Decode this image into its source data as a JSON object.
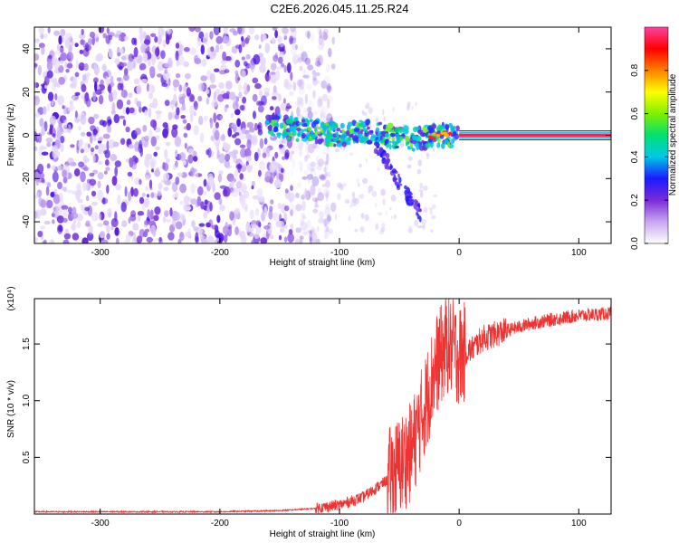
{
  "title": "C2E6.2026.045.11.25.R24",
  "chart_data": [
    {
      "type": "heatmap",
      "xlabel": "Height of straight line (km)",
      "ylabel": "Frequency (Hz)",
      "xlim": [
        -355,
        127
      ],
      "ylim": [
        -50,
        50
      ],
      "xticks": [
        -300,
        -200,
        -100,
        0,
        100
      ],
      "yticks": [
        -40,
        -20,
        0,
        20,
        40
      ],
      "colorbar": {
        "label": "Normalized spectral amplitude",
        "range": [
          0,
          1
        ],
        "ticks": [
          "0.0",
          "0.2",
          "0.4",
          "0.6",
          "0.8"
        ],
        "colors": [
          "#ffffff",
          "#c8a6f0",
          "#7b2bd8",
          "#1a1aff",
          "#00c8e6",
          "#00e070",
          "#80f000",
          "#ffff00",
          "#ff8000",
          "#ff0000",
          "#ff40a0"
        ]
      },
      "features": {
        "noise_region_x": [
          -355,
          -120
        ],
        "signal_track": [
          {
            "x": -160,
            "y": 5
          },
          {
            "x": -140,
            "y": 3
          },
          {
            "x": -120,
            "y": 2
          },
          {
            "x": -100,
            "y": 0
          },
          {
            "x": -80,
            "y": 2
          },
          {
            "x": -60,
            "y": 0
          },
          {
            "x": -40,
            "y": -2
          },
          {
            "x": -20,
            "y": 0
          },
          {
            "x": 0,
            "y": 0
          },
          {
            "x": 127,
            "y": 0
          }
        ],
        "branch_track": [
          {
            "x": -70,
            "y": -5
          },
          {
            "x": -60,
            "y": -12
          },
          {
            "x": -50,
            "y": -22
          },
          {
            "x": -40,
            "y": -30
          },
          {
            "x": -30,
            "y": -38
          }
        ]
      }
    },
    {
      "type": "line",
      "xlabel": "Height of straight line (km)",
      "ylabel": "SNR (10 * v/v)",
      "y_multiplier": "(x10⁴)",
      "xlim": [
        -355,
        127
      ],
      "ylim": [
        0,
        1.9
      ],
      "xticks": [
        -300,
        -200,
        -100,
        0,
        100
      ],
      "yticks": [
        0.5,
        1.0,
        1.5
      ],
      "series": [
        {
          "color": "#ee3333",
          "points": [
            [
              -355,
              0.02
            ],
            [
              -300,
              0.02
            ],
            [
              -250,
              0.02
            ],
            [
              -200,
              0.02
            ],
            [
              -150,
              0.03
            ],
            [
              -120,
              0.05
            ],
            [
              -100,
              0.08
            ],
            [
              -80,
              0.15
            ],
            [
              -60,
              0.3
            ],
            [
              -40,
              0.55
            ],
            [
              -30,
              0.9
            ],
            [
              -20,
              1.3
            ],
            [
              -10,
              1.5
            ],
            [
              0,
              1.4
            ],
            [
              10,
              1.45
            ],
            [
              20,
              1.55
            ],
            [
              40,
              1.62
            ],
            [
              60,
              1.68
            ],
            [
              80,
              1.72
            ],
            [
              100,
              1.75
            ],
            [
              127,
              1.77
            ]
          ]
        }
      ]
    }
  ]
}
